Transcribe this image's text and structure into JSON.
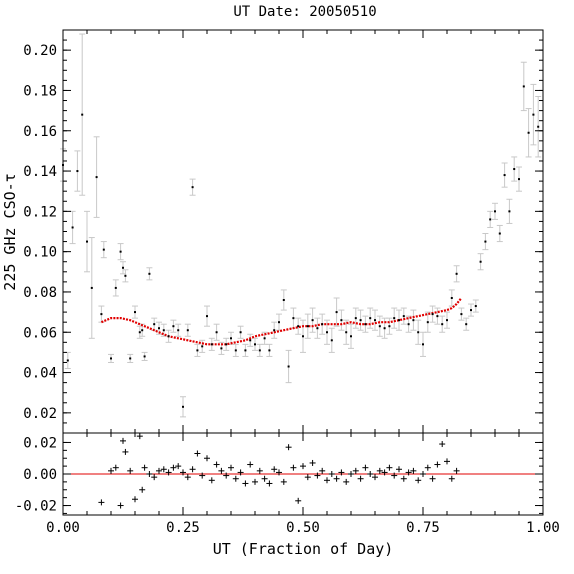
{
  "chart_data": [
    {
      "type": "scatter",
      "title": "UT Date: 20050510",
      "xlabel": "UT (Fraction of Day)",
      "ylabel": "225 GHz CSO-τ",
      "xlim": [
        0.0,
        1.0
      ],
      "ylim": [
        0.01,
        0.21
      ],
      "x_ticks": [
        "0.00",
        "0.25",
        "0.50",
        "0.75",
        "1.00"
      ],
      "y_ticks": [
        "0.02",
        "0.04",
        "0.06",
        "0.08",
        "0.10",
        "0.12",
        "0.14",
        "0.16",
        "0.18",
        "0.20"
      ],
      "grid": false,
      "colors": {
        "points": "#000000",
        "error_bars": "#c8c8c8",
        "fit": "#e00000"
      },
      "series": [
        {
          "type": "scatter",
          "x": [
            0.0,
            0.01,
            0.02,
            0.03,
            0.04,
            0.05,
            0.06,
            0.07,
            0.08,
            0.085,
            0.1,
            0.11,
            0.12,
            0.125,
            0.13,
            0.14,
            0.15,
            0.16,
            0.165,
            0.17,
            0.18,
            0.19,
            0.2,
            0.21,
            0.22,
            0.23,
            0.24,
            0.25,
            0.26,
            0.27,
            0.28,
            0.29,
            0.3,
            0.31,
            0.32,
            0.33,
            0.34,
            0.35,
            0.36,
            0.37,
            0.38,
            0.39,
            0.4,
            0.41,
            0.42,
            0.43,
            0.44,
            0.45,
            0.46,
            0.47,
            0.48,
            0.49,
            0.5,
            0.51,
            0.52,
            0.53,
            0.54,
            0.55,
            0.56,
            0.57,
            0.58,
            0.59,
            0.6,
            0.61,
            0.62,
            0.63,
            0.64,
            0.65,
            0.66,
            0.67,
            0.68,
            0.69,
            0.7,
            0.71,
            0.72,
            0.73,
            0.74,
            0.75,
            0.76,
            0.77,
            0.78,
            0.79,
            0.8,
            0.81,
            0.82,
            0.83,
            0.84,
            0.85,
            0.86,
            0.87,
            0.88,
            0.89,
            0.9,
            0.91,
            0.92,
            0.93,
            0.94,
            0.95,
            0.96,
            0.97,
            0.98,
            0.99
          ],
          "y": [
            0.143,
            0.046,
            0.112,
            0.14,
            0.168,
            0.105,
            0.082,
            0.137,
            0.069,
            0.101,
            0.047,
            0.082,
            0.1,
            0.092,
            0.088,
            0.047,
            0.07,
            0.06,
            0.061,
            0.048,
            0.089,
            0.064,
            0.062,
            0.061,
            0.058,
            0.063,
            0.061,
            0.023,
            0.061,
            0.132,
            0.051,
            0.053,
            0.068,
            0.054,
            0.06,
            0.052,
            0.054,
            0.057,
            0.051,
            0.06,
            0.051,
            0.056,
            0.054,
            0.051,
            0.057,
            0.051,
            0.061,
            0.065,
            0.076,
            0.043,
            0.067,
            0.063,
            0.058,
            0.063,
            0.066,
            0.062,
            0.064,
            0.06,
            0.056,
            0.07,
            0.066,
            0.06,
            0.058,
            0.067,
            0.066,
            0.064,
            0.067,
            0.066,
            0.063,
            0.062,
            0.063,
            0.067,
            0.066,
            0.068,
            0.064,
            0.066,
            0.06,
            0.054,
            0.065,
            0.069,
            0.068,
            0.064,
            0.066,
            0.077,
            0.089,
            0.069,
            0.064,
            0.071,
            0.073,
            0.095,
            0.105,
            0.116,
            0.12,
            0.109,
            0.138,
            0.12,
            0.141,
            0.136,
            0.182,
            0.159,
            0.168,
            0.162
          ],
          "y_err": [
            0.008,
            0.004,
            0.008,
            0.01,
            0.04,
            0.015,
            0.025,
            0.02,
            0.004,
            0.004,
            0.002,
            0.004,
            0.004,
            0.003,
            0.003,
            0.002,
            0.003,
            0.003,
            0.003,
            0.002,
            0.003,
            0.003,
            0.003,
            0.003,
            0.003,
            0.003,
            0.003,
            0.005,
            0.003,
            0.004,
            0.003,
            0.003,
            0.005,
            0.003,
            0.004,
            0.003,
            0.003,
            0.003,
            0.003,
            0.003,
            0.003,
            0.003,
            0.003,
            0.003,
            0.003,
            0.003,
            0.004,
            0.004,
            0.005,
            0.008,
            0.005,
            0.004,
            0.008,
            0.006,
            0.006,
            0.005,
            0.005,
            0.006,
            0.006,
            0.007,
            0.005,
            0.006,
            0.006,
            0.005,
            0.005,
            0.004,
            0.005,
            0.005,
            0.005,
            0.005,
            0.004,
            0.005,
            0.005,
            0.004,
            0.004,
            0.005,
            0.006,
            0.006,
            0.005,
            0.004,
            0.004,
            0.004,
            0.004,
            0.004,
            0.004,
            0.003,
            0.003,
            0.003,
            0.003,
            0.004,
            0.004,
            0.004,
            0.004,
            0.004,
            0.006,
            0.006,
            0.006,
            0.006,
            0.012,
            0.012,
            0.015,
            0.015
          ]
        },
        {
          "type": "line",
          "x": [
            0.08,
            0.1,
            0.12,
            0.14,
            0.16,
            0.18,
            0.2,
            0.22,
            0.24,
            0.26,
            0.28,
            0.3,
            0.32,
            0.34,
            0.36,
            0.38,
            0.4,
            0.42,
            0.44,
            0.46,
            0.48,
            0.5,
            0.52,
            0.54,
            0.56,
            0.58,
            0.6,
            0.62,
            0.64,
            0.66,
            0.68,
            0.7,
            0.72,
            0.74,
            0.76,
            0.78,
            0.8,
            0.81,
            0.82,
            0.83
          ],
          "y": [
            0.065,
            0.067,
            0.067,
            0.066,
            0.064,
            0.062,
            0.06,
            0.058,
            0.057,
            0.056,
            0.055,
            0.054,
            0.054,
            0.054,
            0.055,
            0.056,
            0.058,
            0.059,
            0.06,
            0.061,
            0.062,
            0.063,
            0.063,
            0.064,
            0.064,
            0.064,
            0.065,
            0.064,
            0.064,
            0.065,
            0.065,
            0.066,
            0.067,
            0.068,
            0.069,
            0.07,
            0.071,
            0.072,
            0.074,
            0.077
          ]
        }
      ]
    },
    {
      "type": "scatter",
      "xlim": [
        0.0,
        1.0
      ],
      "ylim": [
        -0.026,
        0.026
      ],
      "x_ticks": [
        "0.00",
        "0.25",
        "0.50",
        "0.75",
        "1.00"
      ],
      "y_ticks": [
        "-0.02",
        "0.00",
        "0.02"
      ],
      "reference_line": 0.0,
      "colors": {
        "points": "#000000",
        "reference_line": "#e00000"
      },
      "series": [
        {
          "type": "scatter",
          "x": [
            0.08,
            0.1,
            0.11,
            0.12,
            0.125,
            0.13,
            0.14,
            0.15,
            0.16,
            0.165,
            0.17,
            0.18,
            0.19,
            0.2,
            0.21,
            0.22,
            0.23,
            0.24,
            0.25,
            0.26,
            0.27,
            0.28,
            0.29,
            0.3,
            0.31,
            0.32,
            0.33,
            0.34,
            0.35,
            0.36,
            0.37,
            0.38,
            0.39,
            0.4,
            0.41,
            0.42,
            0.43,
            0.44,
            0.45,
            0.46,
            0.47,
            0.48,
            0.49,
            0.5,
            0.51,
            0.52,
            0.53,
            0.54,
            0.55,
            0.56,
            0.57,
            0.58,
            0.59,
            0.6,
            0.61,
            0.62,
            0.63,
            0.64,
            0.65,
            0.66,
            0.67,
            0.68,
            0.69,
            0.7,
            0.71,
            0.72,
            0.73,
            0.74,
            0.75,
            0.76,
            0.77,
            0.78,
            0.79,
            0.8,
            0.81,
            0.82
          ],
          "y": [
            -0.018,
            0.002,
            0.004,
            -0.02,
            0.021,
            0.014,
            0.002,
            -0.016,
            0.024,
            -0.01,
            0.004,
            0.0,
            -0.002,
            0.002,
            0.003,
            0.001,
            0.004,
            0.005,
            0.001,
            -0.002,
            0.003,
            0.013,
            -0.001,
            0.01,
            -0.004,
            0.006,
            0.002,
            -0.001,
            0.004,
            -0.003,
            0.001,
            -0.006,
            0.006,
            -0.005,
            0.002,
            -0.003,
            -0.006,
            0.003,
            0.001,
            -0.005,
            0.017,
            0.004,
            -0.017,
            0.005,
            -0.002,
            0.007,
            -0.001,
            0.002,
            -0.004,
            0.0,
            -0.003,
            0.001,
            -0.005,
            0.0,
            0.002,
            -0.003,
            0.004,
            0.0,
            -0.002,
            0.002,
            0.001,
            0.004,
            -0.001,
            0.003,
            -0.003,
            0.001,
            0.002,
            -0.004,
            0.0,
            0.004,
            -0.003,
            0.006,
            0.019,
            0.008,
            -0.003,
            0.002
          ]
        }
      ]
    }
  ]
}
